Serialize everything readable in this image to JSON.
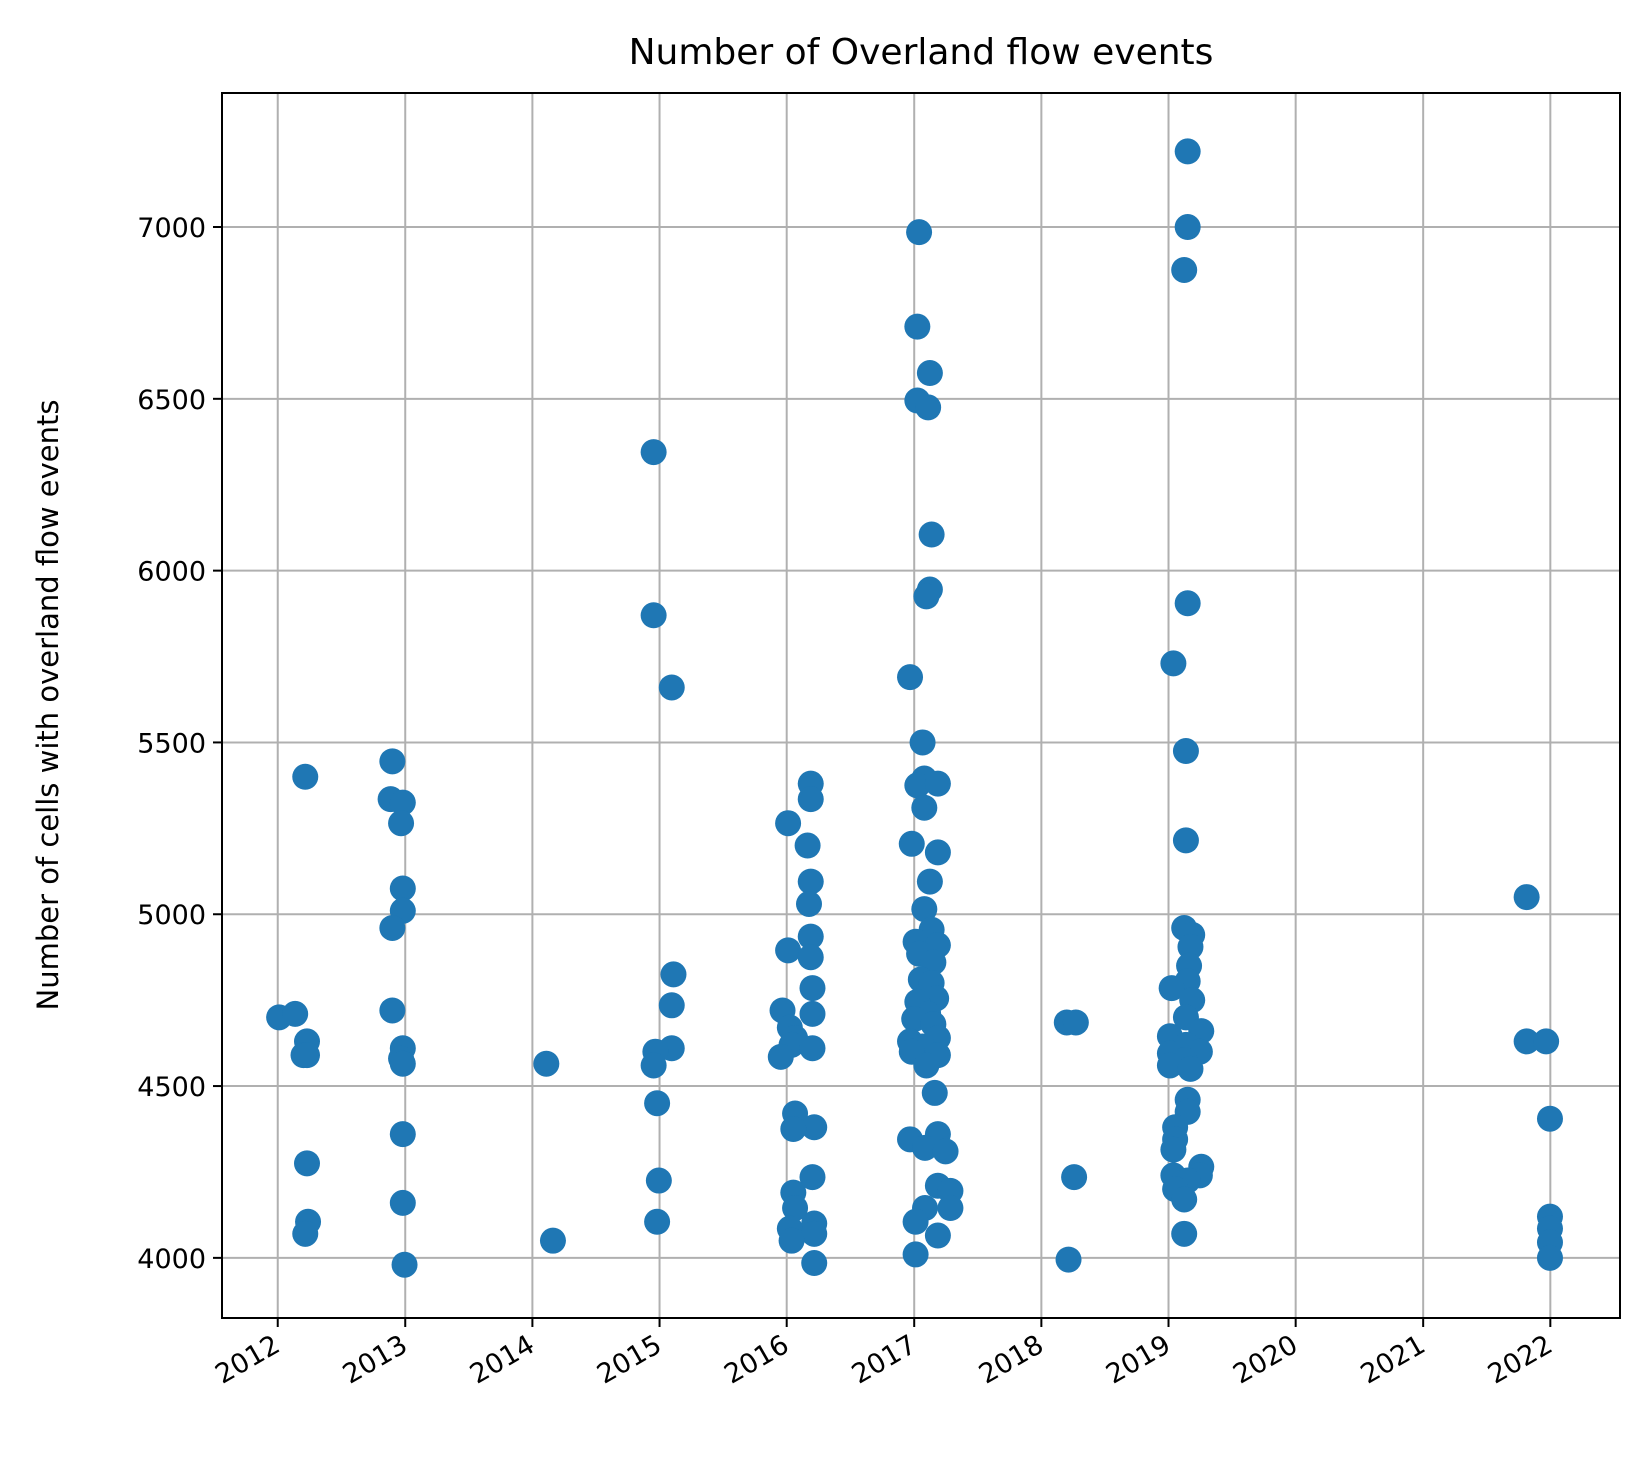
{
  "chart_data": {
    "type": "scatter",
    "title": "Number of Overland flow events",
    "xlabel": "",
    "ylabel": "Number of cells with overland flow events",
    "x_ticks": [
      "2012",
      "2013",
      "2014",
      "2015",
      "2016",
      "2017",
      "2018",
      "2019",
      "2020",
      "2021",
      "2022"
    ],
    "y_ticks": [
      4000,
      4500,
      5000,
      5500,
      6000,
      6500,
      7000
    ],
    "xlim": [
      "2011-07-25",
      "2022-07-20"
    ],
    "ylim": [
      3825,
      7390
    ],
    "grid": true,
    "marker_color": "#1f77b4",
    "series": [
      {
        "points": [
          {
            "x": "2012-01-05",
            "y": 4700
          },
          {
            "x": "2012-02-20",
            "y": 4710
          },
          {
            "x": "2012-03-20",
            "y": 5400
          },
          {
            "x": "2012-03-25",
            "y": 4630
          },
          {
            "x": "2012-03-15",
            "y": 4590
          },
          {
            "x": "2012-03-25",
            "y": 4590
          },
          {
            "x": "2012-03-25",
            "y": 4275
          },
          {
            "x": "2012-03-28",
            "y": 4105
          },
          {
            "x": "2012-03-20",
            "y": 4070
          },
          {
            "x": "2012-11-25",
            "y": 5445
          },
          {
            "x": "2012-11-20",
            "y": 5335
          },
          {
            "x": "2012-12-25",
            "y": 5325
          },
          {
            "x": "2012-12-20",
            "y": 5265
          },
          {
            "x": "2012-12-25",
            "y": 5075
          },
          {
            "x": "2012-12-25",
            "y": 5010
          },
          {
            "x": "2012-11-25",
            "y": 4960
          },
          {
            "x": "2012-11-25",
            "y": 4720
          },
          {
            "x": "2012-12-25",
            "y": 4610
          },
          {
            "x": "2012-12-20",
            "y": 4580
          },
          {
            "x": "2012-12-25",
            "y": 4565
          },
          {
            "x": "2012-12-25",
            "y": 4360
          },
          {
            "x": "2012-12-25",
            "y": 4160
          },
          {
            "x": "2012-12-30",
            "y": 3980
          },
          {
            "x": "2014-02-10",
            "y": 4565
          },
          {
            "x": "2014-03-01",
            "y": 4050
          },
          {
            "x": "2014-12-15",
            "y": 6345
          },
          {
            "x": "2014-12-15",
            "y": 5870
          },
          {
            "x": "2015-02-05",
            "y": 5660
          },
          {
            "x": "2015-02-10",
            "y": 4825
          },
          {
            "x": "2015-02-05",
            "y": 4735
          },
          {
            "x": "2015-02-05",
            "y": 4610
          },
          {
            "x": "2014-12-20",
            "y": 4600
          },
          {
            "x": "2014-12-15",
            "y": 4560
          },
          {
            "x": "2014-12-25",
            "y": 4450
          },
          {
            "x": "2014-12-30",
            "y": 4225
          },
          {
            "x": "2014-12-25",
            "y": 4105
          },
          {
            "x": "2016-03-10",
            "y": 5380
          },
          {
            "x": "2016-03-10",
            "y": 5335
          },
          {
            "x": "2016-01-05",
            "y": 5265
          },
          {
            "x": "2016-03-01",
            "y": 5200
          },
          {
            "x": "2016-03-10",
            "y": 5095
          },
          {
            "x": "2016-03-05",
            "y": 5030
          },
          {
            "x": "2016-03-10",
            "y": 4935
          },
          {
            "x": "2016-01-05",
            "y": 4895
          },
          {
            "x": "2016-03-10",
            "y": 4875
          },
          {
            "x": "2016-03-15",
            "y": 4785
          },
          {
            "x": "2015-12-20",
            "y": 4720
          },
          {
            "x": "2016-03-15",
            "y": 4710
          },
          {
            "x": "2016-01-10",
            "y": 4670
          },
          {
            "x": "2016-01-25",
            "y": 4640
          },
          {
            "x": "2016-01-15",
            "y": 4620
          },
          {
            "x": "2016-03-15",
            "y": 4610
          },
          {
            "x": "2015-12-15",
            "y": 4585
          },
          {
            "x": "2016-01-25",
            "y": 4420
          },
          {
            "x": "2016-03-20",
            "y": 4380
          },
          {
            "x": "2016-01-20",
            "y": 4375
          },
          {
            "x": "2016-03-15",
            "y": 4235
          },
          {
            "x": "2016-01-20",
            "y": 4190
          },
          {
            "x": "2016-01-25",
            "y": 4145
          },
          {
            "x": "2016-03-20",
            "y": 4100
          },
          {
            "x": "2016-01-10",
            "y": 4085
          },
          {
            "x": "2016-03-20",
            "y": 4070
          },
          {
            "x": "2016-01-15",
            "y": 4050
          },
          {
            "x": "2016-03-20",
            "y": 3985
          },
          {
            "x": "2017-01-15",
            "y": 6985
          },
          {
            "x": "2017-01-10",
            "y": 6710
          },
          {
            "x": "2017-02-15",
            "y": 6575
          },
          {
            "x": "2017-01-10",
            "y": 6495
          },
          {
            "x": "2017-02-10",
            "y": 6475
          },
          {
            "x": "2017-02-20",
            "y": 6105
          },
          {
            "x": "2017-02-15",
            "y": 5945
          },
          {
            "x": "2017-02-05",
            "y": 5925
          },
          {
            "x": "2016-12-20",
            "y": 5690
          },
          {
            "x": "2017-01-25",
            "y": 5500
          },
          {
            "x": "2017-01-30",
            "y": 5395
          },
          {
            "x": "2017-01-10",
            "y": 5375
          },
          {
            "x": "2017-03-10",
            "y": 5380
          },
          {
            "x": "2017-01-30",
            "y": 5310
          },
          {
            "x": "2016-12-25",
            "y": 5205
          },
          {
            "x": "2017-03-10",
            "y": 5180
          },
          {
            "x": "2017-02-15",
            "y": 5095
          },
          {
            "x": "2017-01-30",
            "y": 5015
          },
          {
            "x": "2017-02-20",
            "y": 4955
          },
          {
            "x": "2017-01-05",
            "y": 4920
          },
          {
            "x": "2017-03-10",
            "y": 4910
          },
          {
            "x": "2017-01-15",
            "y": 4885
          },
          {
            "x": "2017-02-25",
            "y": 4860
          },
          {
            "x": "2017-01-20",
            "y": 4810
          },
          {
            "x": "2017-02-20",
            "y": 4800
          },
          {
            "x": "2017-03-05",
            "y": 4755
          },
          {
            "x": "2017-01-10",
            "y": 4745
          },
          {
            "x": "2017-02-10",
            "y": 4710
          },
          {
            "x": "2017-01-01",
            "y": 4695
          },
          {
            "x": "2017-02-25",
            "y": 4680
          },
          {
            "x": "2016-12-20",
            "y": 4630
          },
          {
            "x": "2017-03-10",
            "y": 4640
          },
          {
            "x": "2017-01-25",
            "y": 4615
          },
          {
            "x": "2016-12-25",
            "y": 4600
          },
          {
            "x": "2017-03-10",
            "y": 4590
          },
          {
            "x": "2017-02-05",
            "y": 4560
          },
          {
            "x": "2017-03-01",
            "y": 4480
          },
          {
            "x": "2016-12-20",
            "y": 4345
          },
          {
            "x": "2017-03-10",
            "y": 4360
          },
          {
            "x": "2017-02-01",
            "y": 4320
          },
          {
            "x": "2017-04-01",
            "y": 4310
          },
          {
            "x": "2017-03-10",
            "y": 4210
          },
          {
            "x": "2017-04-15",
            "y": 4195
          },
          {
            "x": "2017-02-01",
            "y": 4145
          },
          {
            "x": "2017-04-15",
            "y": 4145
          },
          {
            "x": "2017-01-05",
            "y": 4105
          },
          {
            "x": "2017-03-10",
            "y": 4065
          },
          {
            "x": "2017-01-05",
            "y": 4010
          },
          {
            "x": "2018-03-15",
            "y": 4685
          },
          {
            "x": "2018-04-10",
            "y": 4685
          },
          {
            "x": "2018-04-05",
            "y": 4235
          },
          {
            "x": "2018-03-20",
            "y": 3995
          },
          {
            "x": "2019-02-25",
            "y": 7220
          },
          {
            "x": "2019-02-25",
            "y": 7000
          },
          {
            "x": "2019-02-15",
            "y": 6875
          },
          {
            "x": "2019-02-25",
            "y": 5905
          },
          {
            "x": "2019-01-15",
            "y": 5730
          },
          {
            "x": "2019-02-20",
            "y": 5475
          },
          {
            "x": "2019-02-20",
            "y": 5215
          },
          {
            "x": "2019-02-15",
            "y": 4960
          },
          {
            "x": "2019-03-10",
            "y": 4940
          },
          {
            "x": "2019-03-05",
            "y": 4905
          },
          {
            "x": "2019-03-01",
            "y": 4850
          },
          {
            "x": "2019-02-25",
            "y": 4805
          },
          {
            "x": "2019-01-10",
            "y": 4785
          },
          {
            "x": "2019-03-10",
            "y": 4750
          },
          {
            "x": "2019-02-20",
            "y": 4700
          },
          {
            "x": "2019-04-05",
            "y": 4660
          },
          {
            "x": "2019-01-05",
            "y": 4645
          },
          {
            "x": "2019-02-20",
            "y": 4620
          },
          {
            "x": "2019-04-01",
            "y": 4600
          },
          {
            "x": "2019-01-05",
            "y": 4595
          },
          {
            "x": "2019-02-15",
            "y": 4575
          },
          {
            "x": "2019-01-05",
            "y": 4560
          },
          {
            "x": "2019-03-05",
            "y": 4550
          },
          {
            "x": "2019-02-25",
            "y": 4460
          },
          {
            "x": "2019-02-25",
            "y": 4425
          },
          {
            "x": "2019-01-20",
            "y": 4380
          },
          {
            "x": "2019-01-20",
            "y": 4345
          },
          {
            "x": "2019-01-15",
            "y": 4315
          },
          {
            "x": "2019-04-05",
            "y": 4265
          },
          {
            "x": "2019-01-15",
            "y": 4240
          },
          {
            "x": "2019-04-01",
            "y": 4240
          },
          {
            "x": "2019-02-25",
            "y": 4225
          },
          {
            "x": "2019-01-20",
            "y": 4200
          },
          {
            "x": "2019-02-15",
            "y": 4170
          },
          {
            "x": "2019-02-15",
            "y": 4070
          },
          {
            "x": "2021-10-25",
            "y": 5050
          },
          {
            "x": "2021-10-25",
            "y": 4630
          },
          {
            "x": "2021-12-20",
            "y": 4630
          },
          {
            "x": "2021-12-31",
            "y": 4405
          },
          {
            "x": "2021-12-31",
            "y": 4120
          },
          {
            "x": "2021-12-31",
            "y": 4085
          },
          {
            "x": "2021-12-31",
            "y": 4045
          },
          {
            "x": "2021-12-31",
            "y": 4000
          }
        ]
      }
    ]
  }
}
